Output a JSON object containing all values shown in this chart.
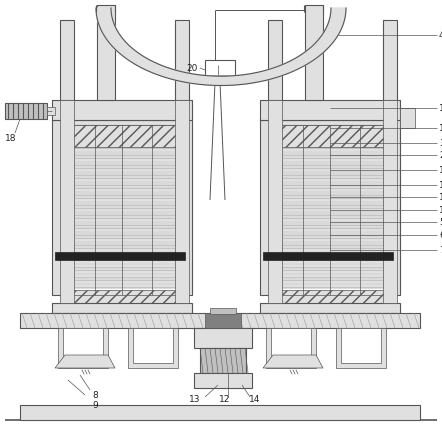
{
  "bg_color": "#ffffff",
  "line_color": "#555555",
  "dark_color": "#222222",
  "hatch_color": "#999999",
  "fill_light": "#e0e0e0",
  "fill_medium": "#c0c0c0",
  "fill_dark": "#808080",
  "fill_white": "#ffffff",
  "lw_main": 0.8,
  "lw_thin": 0.5,
  "lw_thick": 1.2
}
